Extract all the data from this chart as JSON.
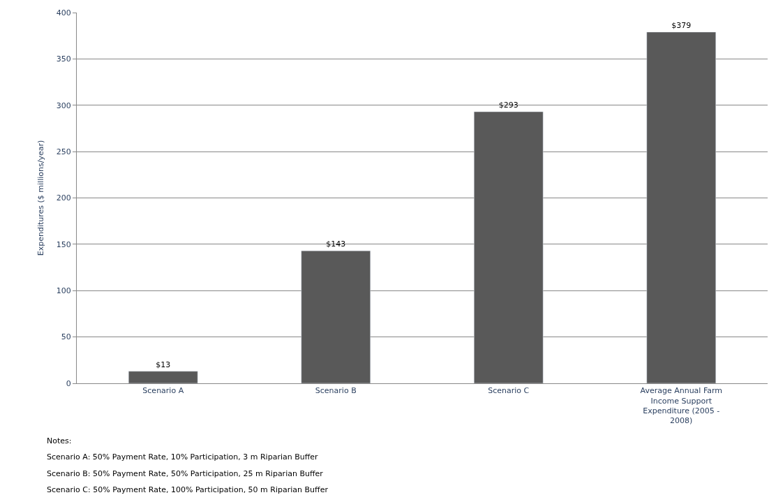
{
  "chart_data": {
    "type": "bar",
    "ylabel": "Expenditures ($ millions/year)",
    "categories": [
      "Scenario A",
      "Scenario B",
      "Scenario C",
      "Average Annual Farm Income Support Expenditure (2005 - 2008)"
    ],
    "values": [
      13,
      143,
      293,
      379
    ],
    "color": "#595959",
    "value_labels": [
      "$13",
      "$143",
      "$293",
      "$379"
    ],
    "ylim": [
      0,
      400
    ],
    "yticks": [
      0,
      50,
      100,
      150,
      200,
      250,
      300,
      350,
      400
    ],
    "grid": "y",
    "annotations": [
      "Notes:",
      "Scenario A: 50% Payment Rate, 10% Participation, 3 m Riparian Buffer",
      "Scenario B: 50% Payment Rate, 50% Participation, 25 m Riparian Buffer",
      "Scenario C: 50% Payment Rate, 100% Participation, 50 m Riparian Buffer"
    ]
  }
}
